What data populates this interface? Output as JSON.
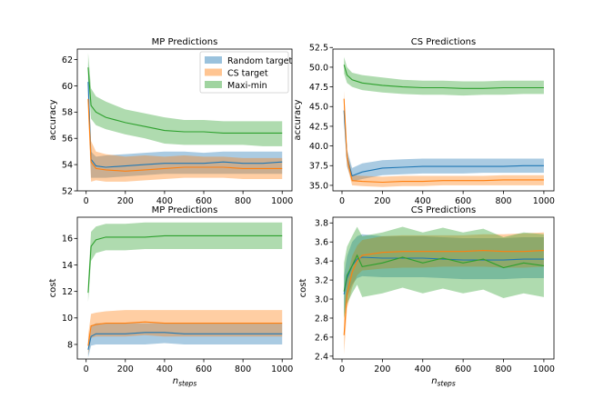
{
  "colors": {
    "random": "#1f77b4",
    "cs": "#ff7f0e",
    "maximin": "#2ca02c"
  },
  "legend": {
    "placement": "upper-right of first panel"
  },
  "chart_data": [
    {
      "type": "line",
      "title": "MP Predictions",
      "xlabel": "",
      "ylabel": "accuracy",
      "xlim": [
        -45,
        1050
      ],
      "ylim": [
        52,
        62.8
      ],
      "xticks": [
        0,
        200,
        400,
        600,
        800,
        1000
      ],
      "yticks": [
        52,
        54,
        56,
        58,
        60,
        62
      ],
      "show_legend": true,
      "x": [
        10,
        25,
        50,
        100,
        200,
        300,
        400,
        500,
        600,
        700,
        800,
        900,
        1000
      ],
      "series": [
        {
          "name": "Random target",
          "key": "random",
          "values": [
            60.3,
            54.4,
            53.9,
            53.8,
            53.9,
            54.0,
            54.1,
            54.1,
            54.1,
            54.2,
            54.1,
            54.1,
            54.2
          ],
          "lower": [
            59.0,
            53.0,
            53.0,
            53.0,
            53.1,
            53.2,
            53.3,
            53.3,
            53.3,
            53.3,
            53.3,
            53.3,
            53.3
          ],
          "upper": [
            61.8,
            55.0,
            54.6,
            54.7,
            54.8,
            54.9,
            55.0,
            55.0,
            54.9,
            55.0,
            55.0,
            55.0,
            55.0
          ]
        },
        {
          "name": "CS target",
          "key": "cs",
          "values": [
            59.0,
            54.2,
            53.7,
            53.6,
            53.5,
            53.6,
            53.7,
            53.8,
            53.8,
            53.8,
            53.7,
            53.7,
            53.7
          ],
          "lower": [
            58.0,
            52.7,
            52.8,
            52.7,
            52.7,
            52.8,
            52.9,
            53.0,
            53.0,
            53.0,
            52.9,
            52.9,
            52.9
          ],
          "upper": [
            60.2,
            55.8,
            55.0,
            54.8,
            54.6,
            54.7,
            54.6,
            54.7,
            54.6,
            54.6,
            54.5,
            54.5,
            54.5
          ]
        },
        {
          "name": "Maxi-min",
          "key": "maximin",
          "values": [
            61.4,
            58.5,
            58.0,
            57.6,
            57.2,
            56.9,
            56.6,
            56.5,
            56.5,
            56.4,
            56.4,
            56.4,
            56.4
          ],
          "lower": [
            60.5,
            57.5,
            57.0,
            56.7,
            56.3,
            56.0,
            55.6,
            55.5,
            55.5,
            55.5,
            55.5,
            55.4,
            55.4
          ],
          "upper": [
            62.5,
            59.8,
            59.2,
            58.8,
            58.2,
            57.9,
            57.6,
            57.4,
            57.4,
            57.3,
            57.3,
            57.3,
            57.3
          ]
        }
      ]
    },
    {
      "type": "line",
      "title": "CS Predictions",
      "xlabel": "",
      "ylabel": "accuracy",
      "xlim": [
        -45,
        1050
      ],
      "ylim": [
        34.3,
        52.3
      ],
      "xticks": [
        0,
        200,
        400,
        600,
        800,
        1000
      ],
      "yticks": [
        35.0,
        37.5,
        40.0,
        42.5,
        45.0,
        47.5,
        50.0,
        52.5
      ],
      "show_legend": false,
      "x": [
        10,
        25,
        50,
        100,
        200,
        300,
        400,
        500,
        600,
        700,
        800,
        900,
        1000
      ],
      "series": [
        {
          "name": "Random target",
          "key": "random",
          "values": [
            44.5,
            38.5,
            36.2,
            36.7,
            37.2,
            37.3,
            37.4,
            37.4,
            37.4,
            37.4,
            37.4,
            37.5,
            37.5
          ],
          "lower": [
            43.0,
            37.4,
            35.5,
            35.8,
            36.3,
            36.4,
            36.5,
            36.5,
            36.5,
            36.6,
            36.6,
            36.6,
            36.6
          ],
          "upper": [
            45.8,
            39.5,
            37.2,
            37.8,
            38.2,
            38.3,
            38.4,
            38.4,
            38.4,
            38.4,
            38.4,
            38.4,
            38.4
          ]
        },
        {
          "name": "CS target",
          "key": "cs",
          "values": [
            46.0,
            38.5,
            35.6,
            35.5,
            35.4,
            35.5,
            35.5,
            35.6,
            35.6,
            35.6,
            35.7,
            35.7,
            35.7
          ],
          "lower": [
            45.0,
            37.5,
            35.0,
            34.9,
            34.8,
            34.9,
            34.9,
            35.0,
            35.0,
            35.0,
            35.0,
            35.0,
            35.0
          ],
          "upper": [
            47.0,
            39.5,
            36.3,
            36.2,
            36.1,
            36.2,
            36.2,
            36.2,
            36.2,
            36.2,
            36.3,
            36.3,
            36.3
          ]
        },
        {
          "name": "Maxi-min",
          "key": "maximin",
          "values": [
            50.3,
            49.0,
            48.4,
            48.0,
            47.7,
            47.5,
            47.4,
            47.4,
            47.3,
            47.3,
            47.4,
            47.4,
            47.4
          ],
          "lower": [
            49.2,
            48.0,
            47.5,
            47.1,
            46.8,
            46.6,
            46.5,
            46.5,
            46.4,
            46.5,
            46.5,
            46.6,
            46.6
          ],
          "upper": [
            51.3,
            50.0,
            49.3,
            49.0,
            48.7,
            48.4,
            48.3,
            48.3,
            48.2,
            48.2,
            48.3,
            48.3,
            48.3
          ]
        }
      ]
    },
    {
      "type": "line",
      "title": "MP Predictions",
      "xlabel": "n_steps",
      "ylabel": "cost",
      "xlim": [
        -45,
        1050
      ],
      "ylim": [
        6.9,
        17.6
      ],
      "xticks": [
        0,
        200,
        400,
        600,
        800,
        1000
      ],
      "yticks": [
        8,
        10,
        12,
        14,
        16
      ],
      "show_legend": false,
      "x": [
        10,
        25,
        50,
        100,
        200,
        300,
        400,
        500,
        600,
        700,
        800,
        900,
        1000
      ],
      "series": [
        {
          "name": "Random target",
          "key": "random",
          "values": [
            7.6,
            8.6,
            8.8,
            8.8,
            8.8,
            8.9,
            8.9,
            8.8,
            8.8,
            8.8,
            8.8,
            8.8,
            8.8
          ],
          "lower": [
            7.0,
            7.9,
            8.0,
            8.0,
            8.0,
            8.0,
            8.1,
            8.0,
            8.0,
            8.0,
            8.0,
            8.0,
            8.0
          ],
          "upper": [
            8.3,
            9.4,
            9.6,
            9.6,
            9.6,
            9.6,
            9.6,
            9.6,
            9.6,
            9.6,
            9.6,
            9.6,
            9.6
          ]
        },
        {
          "name": "CS target",
          "key": "cs",
          "values": [
            7.9,
            9.4,
            9.5,
            9.6,
            9.6,
            9.7,
            9.6,
            9.6,
            9.6,
            9.6,
            9.6,
            9.6,
            9.6
          ],
          "lower": [
            7.2,
            8.5,
            8.6,
            8.6,
            8.6,
            8.7,
            8.6,
            8.6,
            8.6,
            8.6,
            8.6,
            8.6,
            8.6
          ],
          "upper": [
            8.7,
            10.3,
            10.4,
            10.5,
            10.6,
            10.6,
            10.6,
            10.6,
            10.6,
            10.6,
            10.6,
            10.6,
            10.6
          ]
        },
        {
          "name": "Maxi-min",
          "key": "maximin",
          "values": [
            11.9,
            15.4,
            15.9,
            16.1,
            16.1,
            16.1,
            16.2,
            16.2,
            16.2,
            16.2,
            16.2,
            16.2,
            16.2
          ],
          "lower": [
            11.2,
            14.3,
            14.9,
            15.1,
            15.1,
            15.2,
            15.2,
            15.2,
            15.2,
            15.2,
            15.2,
            15.2,
            15.2
          ],
          "upper": [
            12.7,
            16.5,
            16.9,
            17.1,
            17.1,
            17.2,
            17.2,
            17.2,
            17.2,
            17.2,
            17.2,
            17.2,
            17.2
          ]
        }
      ]
    },
    {
      "type": "line",
      "title": "CS Predictions",
      "xlabel": "n_steps",
      "ylabel": "cost",
      "xlim": [
        -45,
        1050
      ],
      "ylim": [
        2.37,
        3.86
      ],
      "xticks": [
        0,
        200,
        400,
        600,
        800,
        1000
      ],
      "yticks": [
        2.4,
        2.6,
        2.8,
        3.0,
        3.2,
        3.4,
        3.6,
        3.8
      ],
      "show_legend": false,
      "x": [
        10,
        25,
        50,
        75,
        100,
        200,
        300,
        400,
        500,
        600,
        700,
        800,
        900,
        1000
      ],
      "series": [
        {
          "name": "Random target",
          "key": "random",
          "values": [
            3.05,
            3.22,
            3.35,
            3.42,
            3.44,
            3.43,
            3.43,
            3.43,
            3.42,
            3.41,
            3.41,
            3.41,
            3.42,
            3.42
          ],
          "lower": [
            2.85,
            3.02,
            3.15,
            3.22,
            3.24,
            3.23,
            3.23,
            3.23,
            3.22,
            3.21,
            3.21,
            3.21,
            3.22,
            3.22
          ],
          "upper": [
            3.25,
            3.45,
            3.6,
            3.66,
            3.68,
            3.66,
            3.66,
            3.66,
            3.65,
            3.64,
            3.64,
            3.64,
            3.65,
            3.65
          ]
        },
        {
          "name": "CS target",
          "key": "cs",
          "values": [
            2.62,
            3.05,
            3.28,
            3.4,
            3.46,
            3.49,
            3.5,
            3.5,
            3.5,
            3.5,
            3.51,
            3.5,
            3.5,
            3.51
          ],
          "lower": [
            2.42,
            2.9,
            3.12,
            3.25,
            3.3,
            3.32,
            3.33,
            3.33,
            3.34,
            3.34,
            3.34,
            3.33,
            3.33,
            3.34
          ],
          "upper": [
            2.85,
            3.22,
            3.45,
            3.56,
            3.62,
            3.66,
            3.67,
            3.67,
            3.67,
            3.67,
            3.68,
            3.68,
            3.69,
            3.7
          ]
        },
        {
          "name": "Maxi-min",
          "key": "maximin",
          "values": [
            3.08,
            3.25,
            3.35,
            3.46,
            3.34,
            3.38,
            3.44,
            3.38,
            3.43,
            3.38,
            3.42,
            3.33,
            3.38,
            3.35
          ],
          "lower": [
            2.8,
            2.95,
            3.06,
            3.15,
            3.02,
            3.06,
            3.12,
            3.06,
            3.11,
            3.06,
            3.1,
            3.01,
            3.06,
            3.02
          ],
          "upper": [
            3.38,
            3.55,
            3.66,
            3.76,
            3.66,
            3.7,
            3.76,
            3.7,
            3.75,
            3.7,
            3.74,
            3.65,
            3.7,
            3.68
          ]
        }
      ]
    }
  ]
}
